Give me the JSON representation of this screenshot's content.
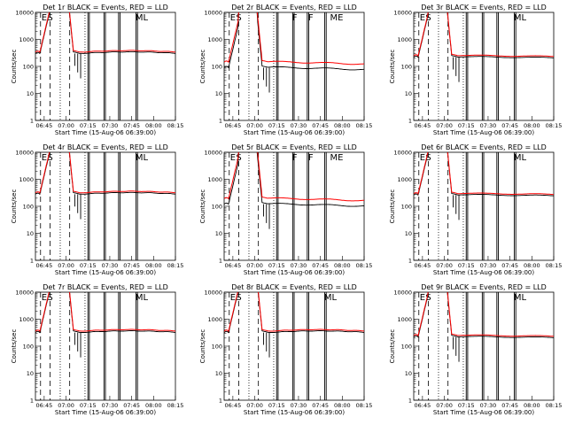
{
  "chart_data": [
    {
      "type": "line",
      "title": "Det 1r BLACK = Events, RED = LLD",
      "profile": "a",
      "events_level": 300
    },
    {
      "type": "line",
      "title": "Det 2r BLACK = Events, RED = LLD",
      "profile": "b",
      "events_level": 90
    },
    {
      "type": "line",
      "title": "Det 3r BLACK = Events, RED = LLD",
      "profile": "c",
      "events_level": 220
    },
    {
      "type": "line",
      "title": "Det 4r BLACK = Events, RED = LLD",
      "profile": "a",
      "events_level": 280
    },
    {
      "type": "line",
      "title": "Det 5r BLACK = Events, RED = LLD",
      "profile": "b",
      "events_level": 120
    },
    {
      "type": "line",
      "title": "Det 6r BLACK = Events, RED = LLD",
      "profile": "c",
      "events_level": 260
    },
    {
      "type": "line",
      "title": "Det 7r BLACK = Events, RED = LLD",
      "profile": "a",
      "events_level": 320
    },
    {
      "type": "line",
      "title": "Det 8r BLACK = Events, RED = LLD",
      "profile": "a",
      "events_level": 320
    },
    {
      "type": "line",
      "title": "Det 9r BLACK = Events, RED = LLD",
      "profile": "c",
      "events_level": 220
    }
  ],
  "shared": {
    "xlabel": "Start Time (15-Aug-06 06:39:00)",
    "ylabel": "Counts/sec",
    "xlim_min": [
      0,
      96
    ],
    "ylim": [
      1,
      10000
    ],
    "yscale": "log",
    "x_ticks": [
      {
        "min": 6,
        "label": "06:45"
      },
      {
        "min": 21,
        "label": "07:00"
      },
      {
        "min": 36,
        "label": "07:15"
      },
      {
        "min": 51,
        "label": "07:30"
      },
      {
        "min": 66,
        "label": "07:45"
      },
      {
        "min": 81,
        "label": "08:00"
      },
      {
        "min": 96,
        "label": "08:15"
      }
    ],
    "y_ticks": [
      {
        "v": 1,
        "label": "1"
      },
      {
        "v": 10,
        "label": "10"
      },
      {
        "v": 100,
        "label": "100"
      },
      {
        "v": 1000,
        "label": "1000"
      },
      {
        "v": 10000,
        "label": "10000"
      }
    ],
    "colors": {
      "events": "#000000",
      "lld": "#ff0000"
    },
    "markers": {
      "a": [
        {
          "min": 3.5,
          "text": "E"
        },
        {
          "min": 7.5,
          "text": "S"
        },
        {
          "min": 68,
          "text": "ML"
        }
      ],
      "b": [
        {
          "min": 3.5,
          "text": "E"
        },
        {
          "min": 7.5,
          "text": "S"
        },
        {
          "min": 46,
          "text": "F"
        },
        {
          "min": 57,
          "text": "F"
        },
        {
          "min": 72,
          "text": "ME"
        }
      ],
      "c": [
        {
          "min": 3.5,
          "text": "E"
        },
        {
          "min": 7.5,
          "text": "S"
        },
        {
          "min": 68,
          "text": "ML"
        }
      ]
    }
  }
}
